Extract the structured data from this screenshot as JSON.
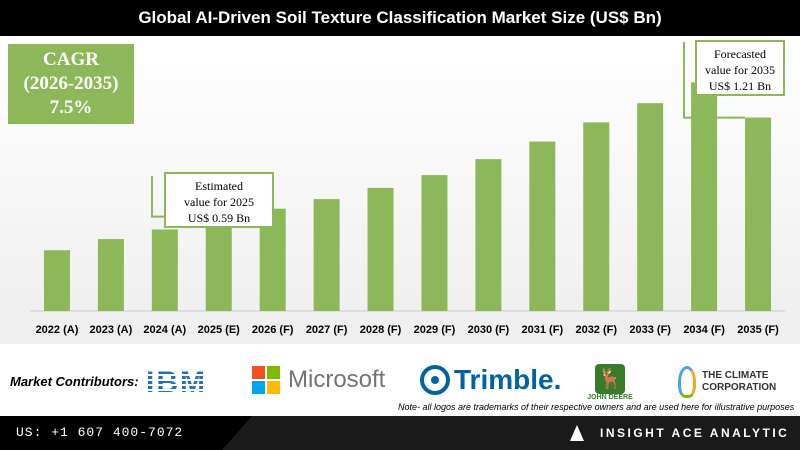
{
  "title": "Global AI-Driven Soil Texture Classification Market Size (US$ Bn)",
  "cagr": {
    "line1": "CAGR",
    "line2": "(2026-2035)",
    "line3": "7.5%"
  },
  "callouts": {
    "y2025": {
      "line1": "Estimated",
      "line2": "value for 2025",
      "line3": "US$ 0.59 Bn"
    },
    "y2035": {
      "line1": "Forecasted",
      "line2": "value for 2035",
      "line3": "US$ 1.21 Bn"
    }
  },
  "colors": {
    "bar": "#8db85a",
    "callout_border": "#8db85a",
    "title_bg": "#000000"
  },
  "chart_data": {
    "type": "bar",
    "categories": [
      "2022 (A)",
      "2023 (A)",
      "2024 (A)",
      "2025 (E)",
      "2026 (F)",
      "2027 (F)",
      "2028 (F)",
      "2029 (F)",
      "2030 (F)",
      "2031 (F)",
      "2032 (F)",
      "2033 (F)",
      "2034 (F)",
      "2035 (F)"
    ],
    "values": [
      0.38,
      0.45,
      0.51,
      0.59,
      0.64,
      0.7,
      0.77,
      0.85,
      0.95,
      1.06,
      1.18,
      1.3,
      1.43,
      1.21
    ],
    "grid": false,
    "legend": "none"
  },
  "contributors": {
    "label": "Market Contributors:",
    "logos": {
      "ibm": "IBM",
      "microsoft": "Microsoft",
      "trimble": "Trimble.",
      "deere": "JOHN DEERE",
      "climate": [
        "THE CLIMATE",
        "CORPORATION"
      ]
    },
    "note": "Note- all logos are trademarks of their respective owners and are used here for illustrative purposes"
  },
  "footer": {
    "phone": "US: +1 607 400-7072",
    "brand": "INSIGHT ACE ANALYTIC"
  }
}
